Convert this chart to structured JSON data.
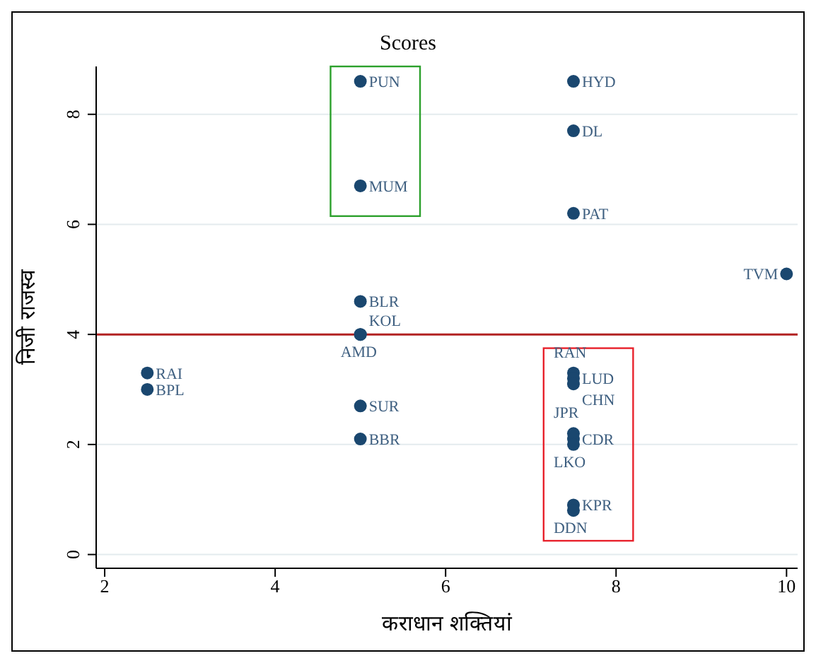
{
  "chart_data": {
    "type": "scatter",
    "title": "Scores",
    "xlabel": "कराधान शक्तियां",
    "ylabel": "निजी राजस्व",
    "series": [
      {
        "color": "#1a476f",
        "x": [
          5,
          7.5,
          7.5,
          5,
          7.5,
          10,
          5,
          5,
          5,
          2.5,
          2.5,
          5,
          5,
          7.5,
          7.5,
          7.5,
          7.5,
          7.5,
          7.5,
          7.5,
          7.5
        ],
        "values": [
          8.6,
          8.6,
          7.7,
          6.7,
          6.2,
          5.1,
          4.6,
          4.0,
          4.0,
          3.3,
          3.0,
          2.7,
          2.1,
          3.3,
          3.2,
          3.1,
          2.2,
          2.1,
          2.0,
          0.9,
          0.8
        ],
        "value_labels": [
          "PUN",
          "HYD",
          "DL",
          "MUM",
          "PAT",
          "TVM",
          "BLR",
          "KOL",
          "AMD",
          "RAI",
          "BPL",
          "SUR",
          "BBR",
          "RAN",
          "LUD",
          "CHN",
          "JPR",
          "CDR",
          "LKO",
          "KPR",
          "DDN"
        ]
      }
    ],
    "xlim": [
      1.9,
      10.13
    ],
    "xticks": [
      2,
      4,
      6,
      8,
      10
    ],
    "ylim": [
      -0.25,
      8.87
    ],
    "yticks": [
      0,
      2,
      4,
      6,
      8
    ],
    "grid": "y",
    "marker": "circle",
    "ref_lines": [
      {
        "axis": "y",
        "value": 4,
        "color": "#b22222"
      }
    ]
  }
}
